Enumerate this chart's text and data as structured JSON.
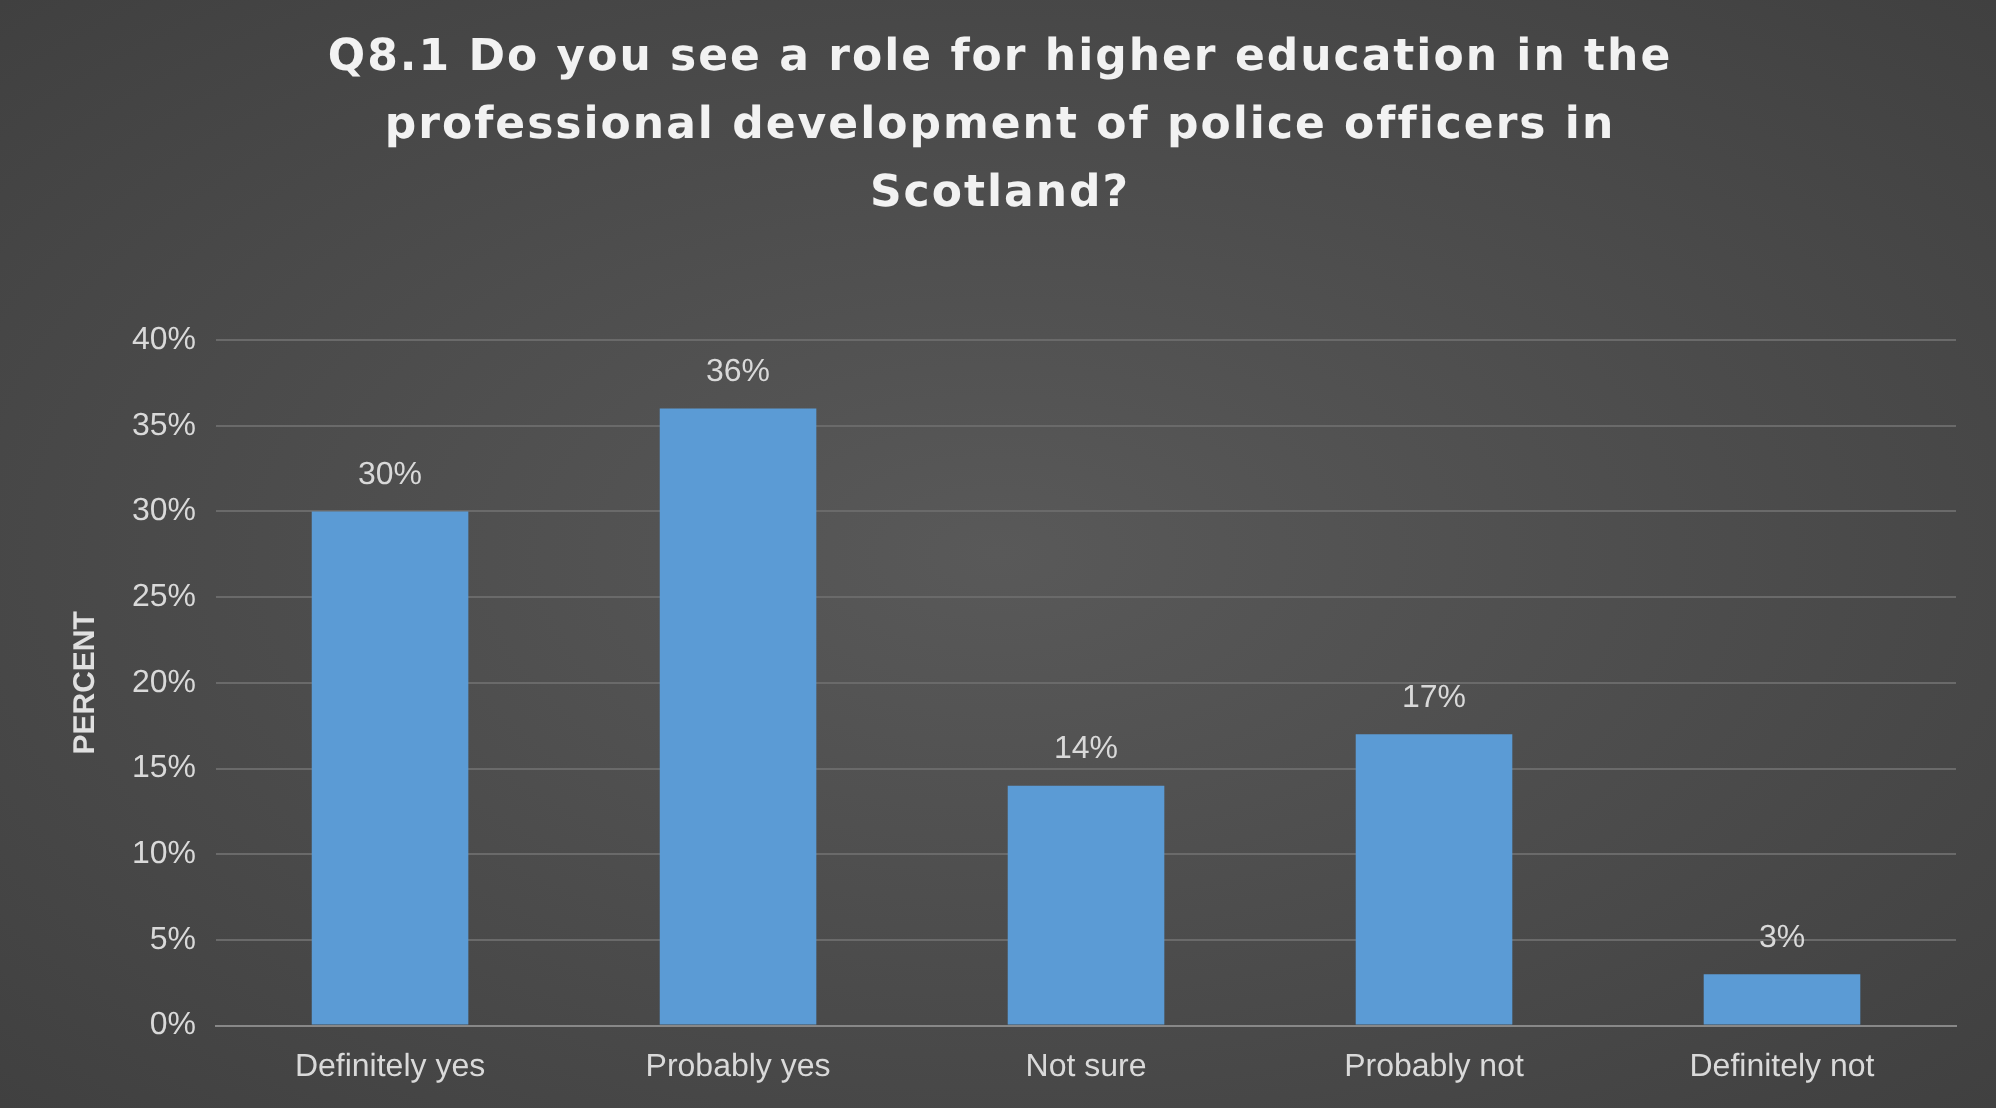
{
  "chart_data": {
    "type": "bar",
    "title": "Q8.1 Do you see a role for higher education in the professional development of police officers in Scotland?",
    "ylabel": "PERCENT",
    "categories": [
      "Definitely yes",
      "Probably yes",
      "Not sure",
      "Probably not",
      "Definitely not"
    ],
    "values": [
      30,
      36,
      14,
      17,
      3
    ],
    "color": "#5b9bd5",
    "value_labels": [
      "30%",
      "36%",
      "14%",
      "17%",
      "3%"
    ],
    "ylim": [
      0,
      40
    ],
    "yticks": [
      {
        "value": 0,
        "label": "0%"
      },
      {
        "value": 5,
        "label": "5%"
      },
      {
        "value": 10,
        "label": "10%"
      },
      {
        "value": 15,
        "label": "15%"
      },
      {
        "value": 20,
        "label": "20%"
      },
      {
        "value": 25,
        "label": "25%"
      },
      {
        "value": 30,
        "label": "30%"
      },
      {
        "value": 35,
        "label": "35%"
      },
      {
        "value": 40,
        "label": "40%"
      }
    ],
    "grid": "y",
    "legend": false
  }
}
